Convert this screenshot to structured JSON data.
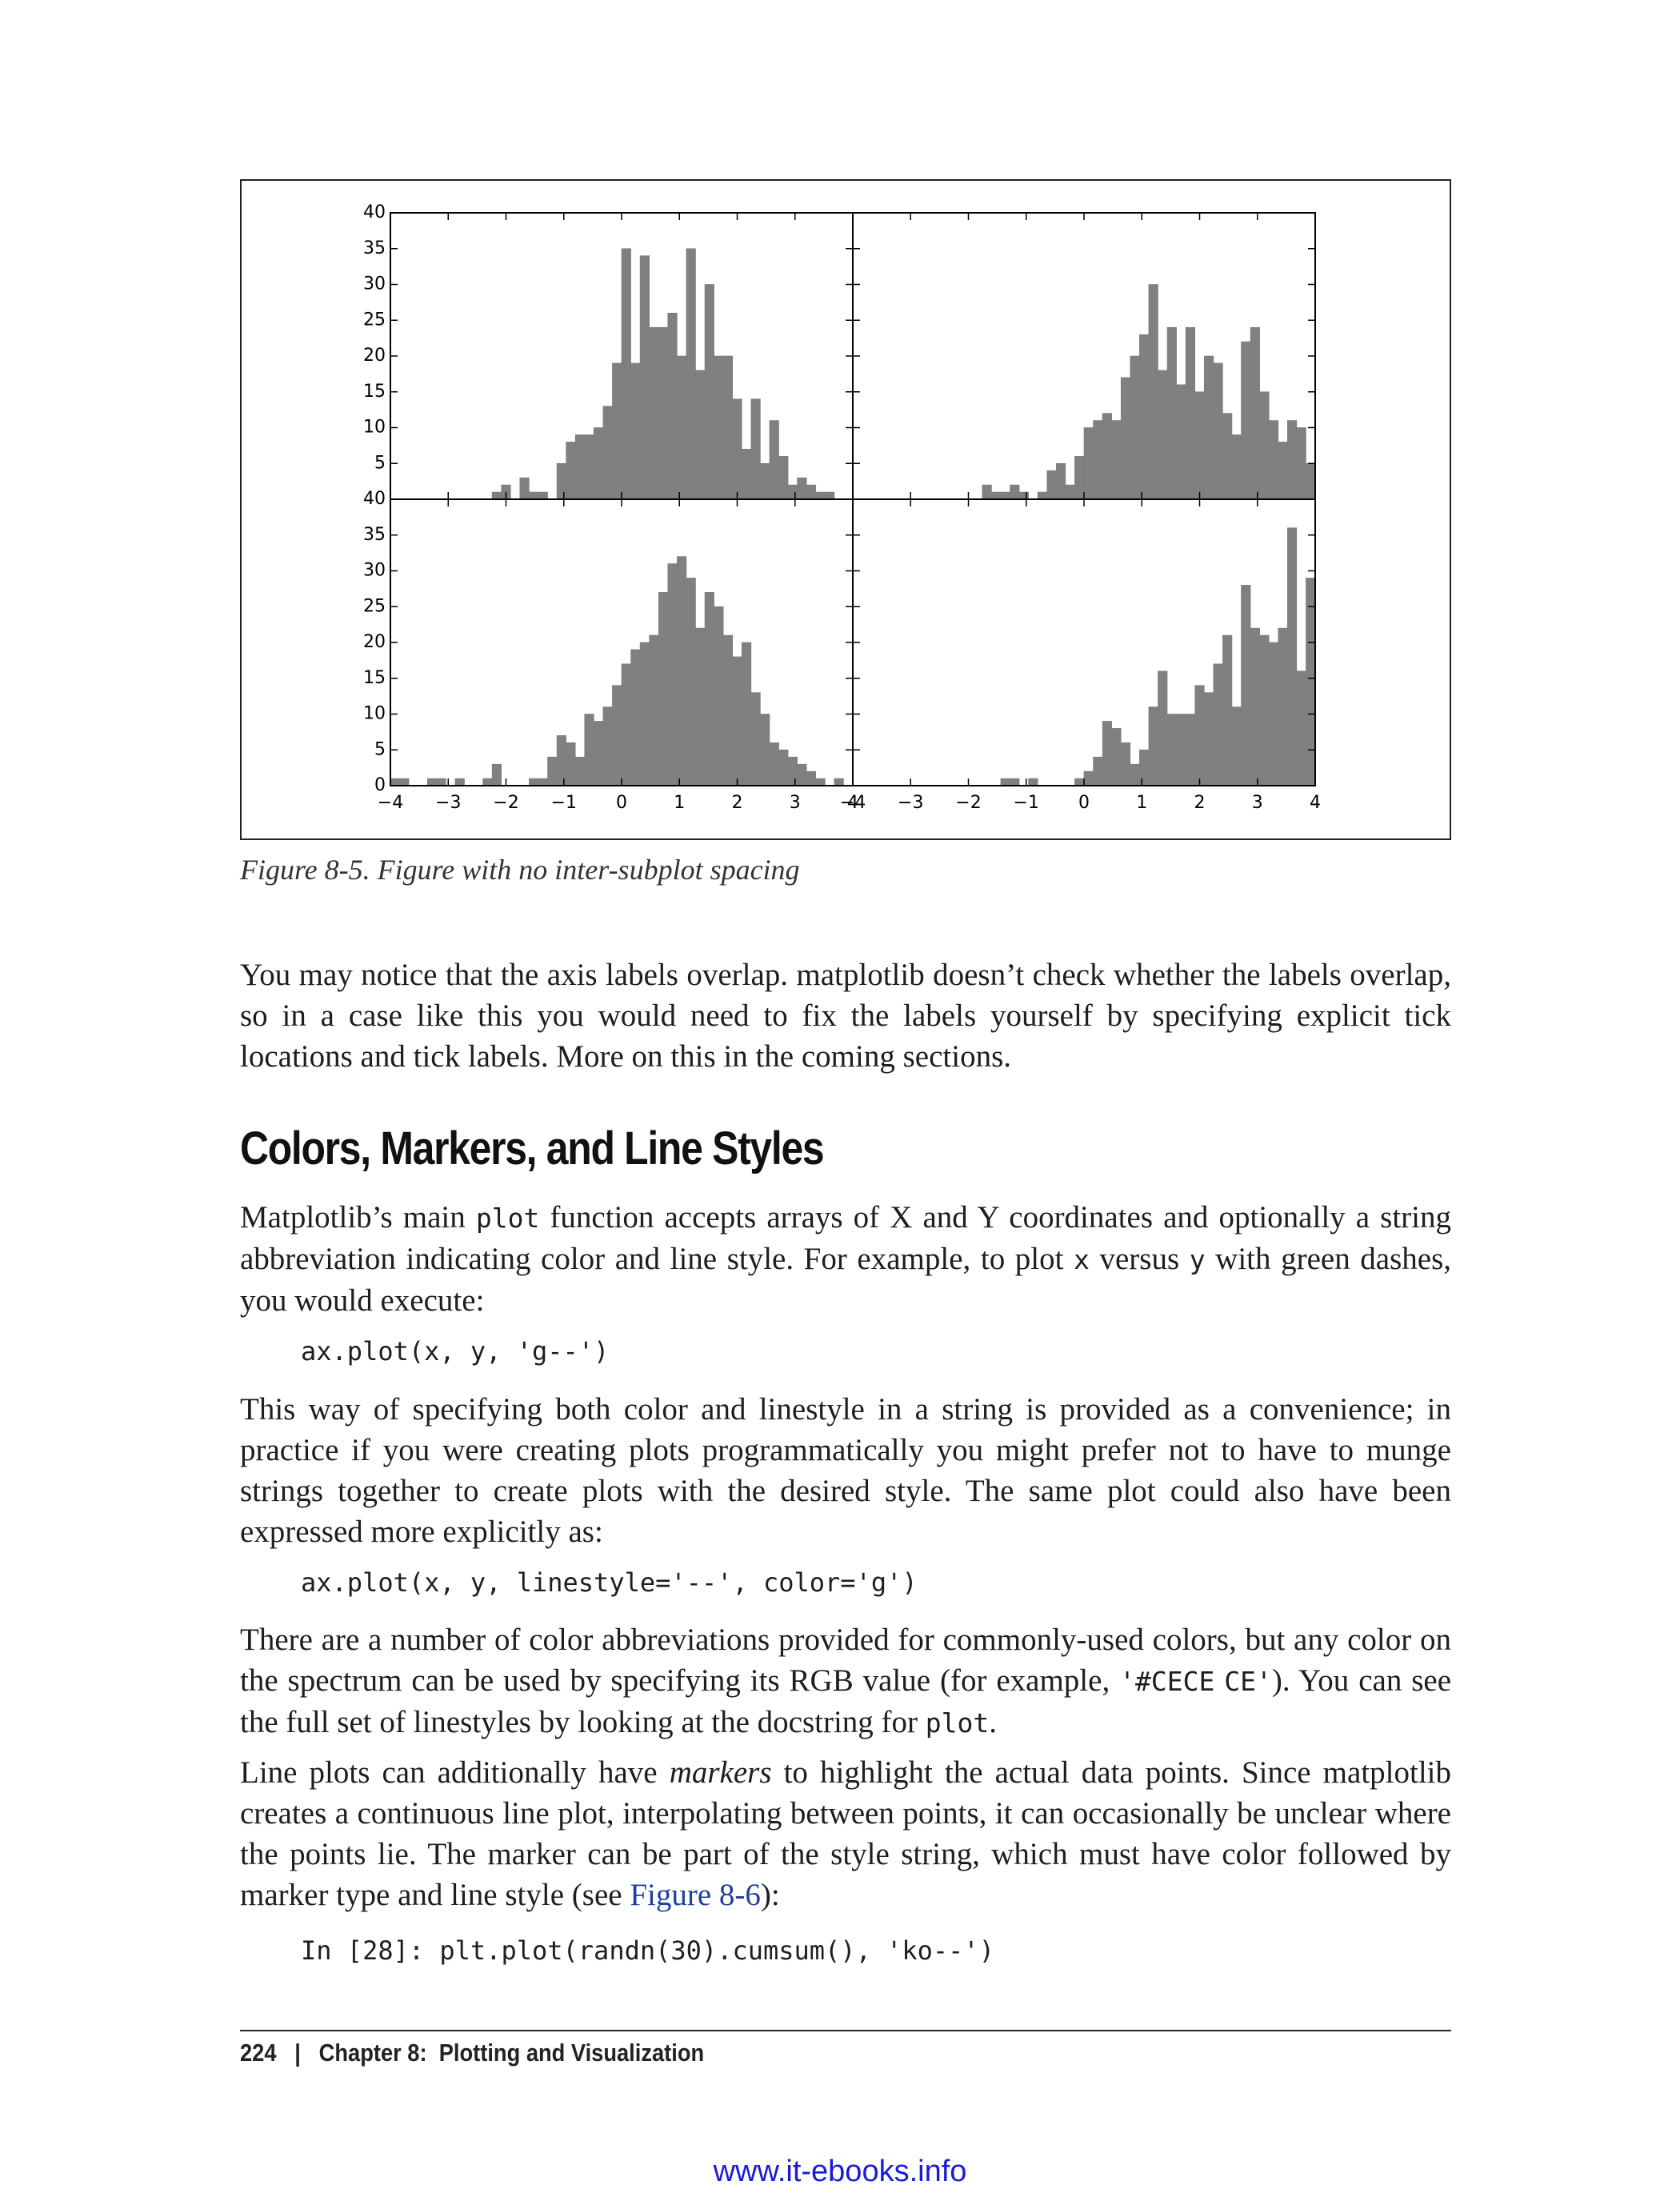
{
  "figure": {
    "caption": "Figure 8-5. Figure with no inter-subplot spacing"
  },
  "chart_data": {
    "type": "bar",
    "layout": "2x2 histograms sharing axes, no spacing",
    "bar_color": "#808080",
    "bins": 50,
    "xlim": [
      -4,
      4
    ],
    "ylim": [
      0,
      40
    ],
    "xticks": [
      "−4",
      "−3",
      "−2",
      "−1",
      "0",
      "1",
      "2",
      "3",
      "4"
    ],
    "yticks_top": [
      "5",
      "10",
      "15",
      "20",
      "25",
      "30",
      "35",
      "40"
    ],
    "yticks_bottom": [
      "0",
      "5",
      "10",
      "15",
      "20",
      "25",
      "30",
      "35",
      "40"
    ],
    "subplots": [
      {
        "position": "top-left",
        "bin_start": -4.0,
        "bin_width": 0.16,
        "values": [
          0,
          0,
          0,
          0,
          0,
          0,
          0,
          0,
          0,
          0,
          0,
          1,
          2,
          0,
          3,
          1,
          1,
          0,
          5,
          8,
          9,
          9,
          10,
          13,
          19,
          35,
          19,
          34,
          24,
          24,
          26,
          20,
          35,
          18,
          30,
          20,
          20,
          14,
          7,
          14,
          5,
          11,
          6,
          2,
          3,
          2,
          1,
          1,
          0,
          0
        ]
      },
      {
        "position": "top-right",
        "bin_start": -4.0,
        "bin_width": 0.16,
        "values": [
          0,
          0,
          0,
          0,
          0,
          0,
          0,
          0,
          0,
          0,
          0,
          0,
          0,
          0,
          2,
          1,
          1,
          2,
          1,
          0,
          1,
          4,
          5,
          2,
          6,
          10,
          11,
          12,
          11,
          17,
          20,
          23,
          30,
          18,
          24,
          16,
          24,
          15,
          20,
          19,
          12,
          9,
          22,
          24,
          15,
          11,
          8,
          11,
          10,
          5
        ]
      },
      {
        "position": "bottom-left",
        "bin_start": -4.0,
        "bin_width": 0.16,
        "values": [
          1,
          1,
          0,
          0,
          1,
          1,
          0,
          1,
          0,
          0,
          1,
          3,
          0,
          0,
          0,
          1,
          1,
          4,
          7,
          6,
          4,
          10,
          9,
          11,
          14,
          17,
          19,
          20,
          21,
          27,
          31,
          32,
          29,
          22,
          27,
          25,
          21,
          18,
          20,
          13,
          10,
          6,
          5,
          4,
          3,
          2,
          1,
          0,
          1,
          0
        ]
      },
      {
        "position": "bottom-right",
        "bin_start": -4.0,
        "bin_width": 0.16,
        "values": [
          0,
          0,
          0,
          0,
          0,
          0,
          0,
          0,
          0,
          0,
          0,
          0,
          0,
          0,
          0,
          0,
          1,
          1,
          0,
          1,
          0,
          0,
          0,
          0,
          1,
          2,
          4,
          9,
          8,
          6,
          3,
          5,
          11,
          16,
          10,
          10,
          10,
          14,
          13,
          17,
          21,
          11,
          28,
          22,
          21,
          20,
          22,
          36,
          16,
          29
        ]
      }
    ]
  },
  "body": {
    "p1": "You may notice that the axis labels overlap. matplotlib doesn’t check whether the labels overlap, so in a case like this you would need to fix the labels yourself by specifying explicit tick locations and tick labels. More on this in the coming sections.",
    "heading": "Colors, Markers, and Line Styles",
    "p2": {
      "a": "Matplotlib’s main ",
      "code1": "plot",
      "b": " function accepts arrays of X and Y coordinates and optionally a string abbreviation indicating color and line style. For example, to plot ",
      "code2": "x",
      "c": " versus ",
      "code3": "y",
      "d": " with green dashes, you would execute:"
    },
    "code1": "ax.plot(x, y, 'g--')",
    "p3": "This way of specifying both color and linestyle in a string is provided as a convenience; in practice if you were creating plots programmatically you might prefer not to have to munge strings together to create plots with the desired style. The same plot could also have been expressed more explicitly as:",
    "code2": "ax.plot(x, y, linestyle='--', color='g')",
    "p4": {
      "a": "There are a number of color abbreviations provided for commonly-used colors, but any color on the spectrum can be used by specifying its RGB value (for example, ",
      "code1": "'#CECE",
      "code2": "CE'",
      "b": "). You can see the full set of linestyles by looking at the docstring for ",
      "code3": "plot",
      "c": "."
    },
    "p5": {
      "a": "Line plots can additionally have ",
      "em": "markers",
      "b": " to highlight the actual data points. Since matplotlib creates a continuous line plot, interpolating between points, it can occasionally be unclear where the points lie. The marker can be part of the style string, which must have color followed by marker type and line style (see ",
      "xref": "Figure 8-6",
      "c": "):"
    },
    "code3": "In [28]: plt.plot(randn(30).cumsum(), 'ko--')"
  },
  "footer": {
    "page_number": "224",
    "separator": "|",
    "chapter": "Chapter 8:  Plotting and Visualization"
  },
  "watermark": "www.it-ebooks.info"
}
